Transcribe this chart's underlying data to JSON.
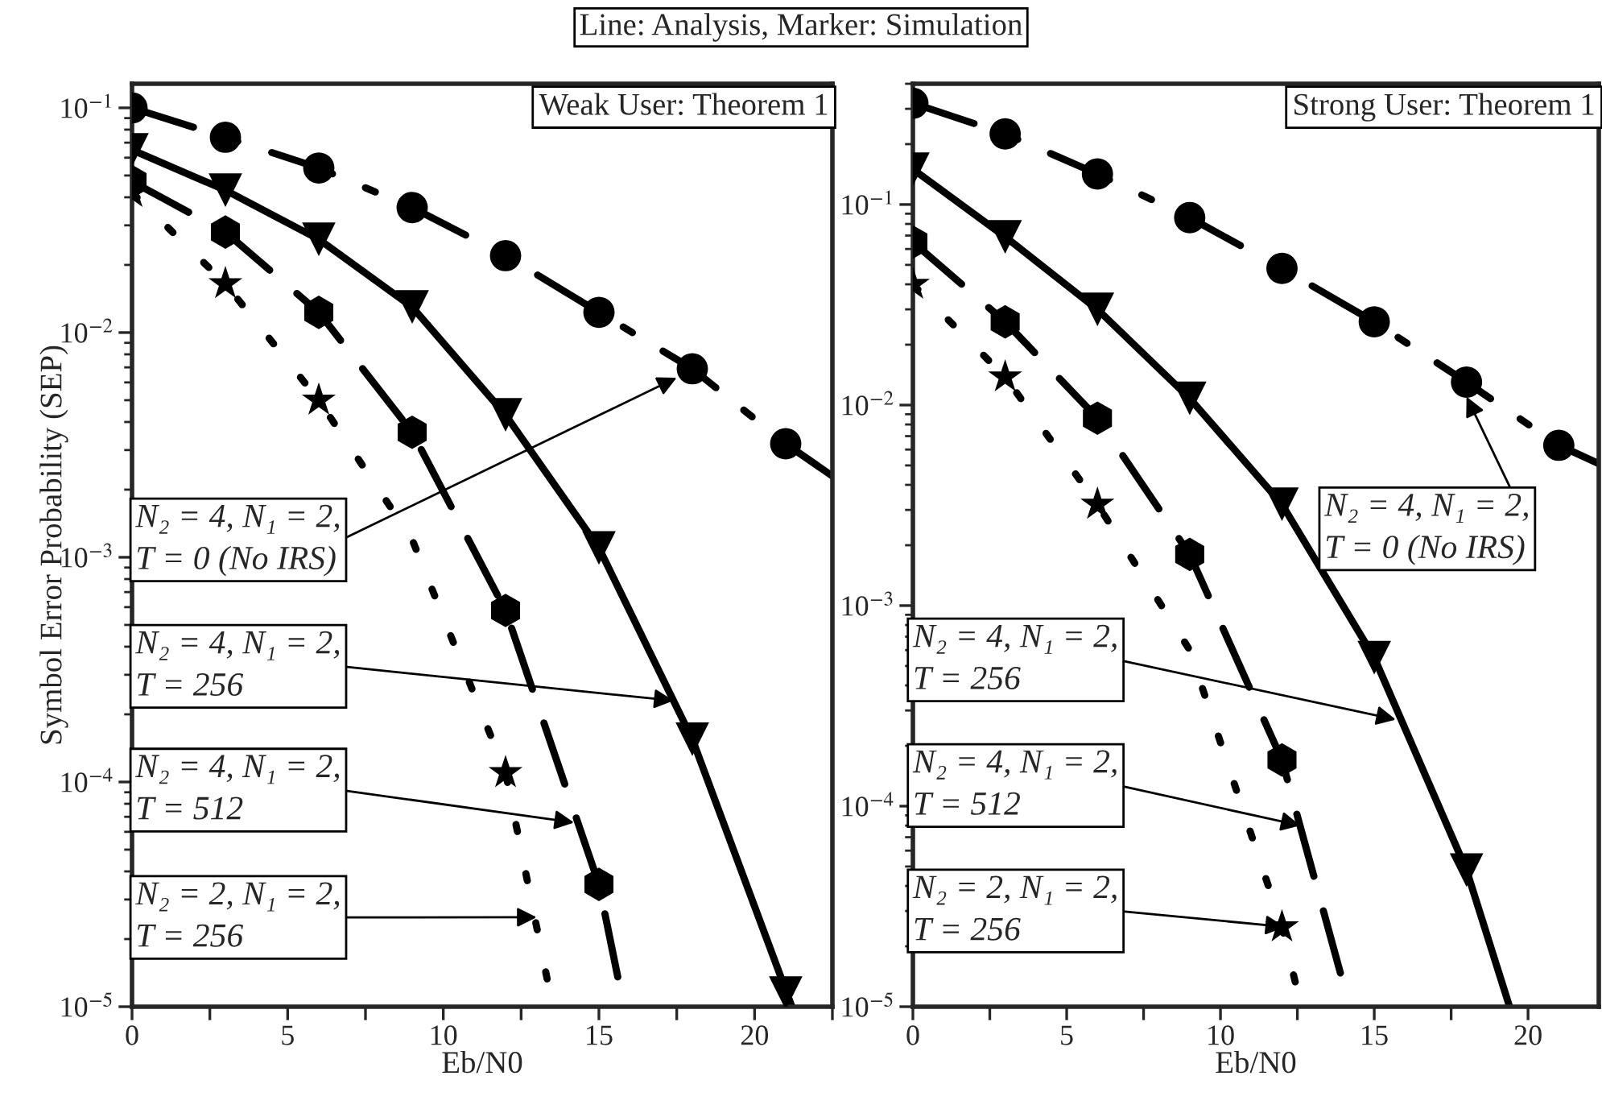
{
  "chart_data": [
    {
      "type": "line",
      "title": "Weak User: Theorem 1",
      "xlabel": "Eb/N0",
      "ylabel": "Symbol Error Probability (SEP)",
      "log": "y",
      "grid": false,
      "legend": false,
      "xlim": [
        0,
        22.5
      ],
      "ylim": [
        1e-05,
        0.128
      ],
      "xticks": [
        0,
        {
          "value": 2.5,
          "label": null
        },
        5,
        {
          "value": 7.5,
          "label": null
        },
        10,
        {
          "value": 12.5,
          "label": null
        },
        15,
        {
          "value": 17.5,
          "label": null
        },
        20,
        {
          "value": 22.5,
          "label": null
        }
      ],
      "yticks": [
        {
          "value": 0.1,
          "label": "10$^{−1}$"
        },
        {
          "value": 0.01,
          "label": "10$^{−2}$"
        },
        {
          "value": 0.001,
          "label": "10$^{−3}$"
        },
        {
          "value": 0.0001,
          "label": "10$^{−4}$"
        },
        {
          "value": 1e-05,
          "label": "10$^{−5}$"
        }
      ],
      "series": [
        {
          "type": "line",
          "color": "#000000",
          "line_style": "dashdot",
          "marker": "none",
          "x": [
            0,
            3,
            6,
            9,
            12,
            15,
            18,
            21,
            22.5
          ],
          "values": [
            0.1,
            0.074,
            0.054,
            0.036,
            0.022,
            0.0123,
            0.0069,
            0.0032,
            0.0023
          ]
        },
        {
          "type": "scatter",
          "color": "#000000",
          "marker": "circle",
          "x": [
            0,
            3,
            6,
            9,
            12,
            15,
            18,
            21
          ],
          "values": [
            0.1,
            0.074,
            0.054,
            0.036,
            0.022,
            0.0123,
            0.0069,
            0.0032
          ]
        },
        {
          "type": "line",
          "color": "#000000",
          "line_style": "solid",
          "marker": "none",
          "x": [
            0,
            3,
            6,
            9,
            12,
            15,
            18,
            21.2
          ],
          "values": [
            0.065,
            0.043,
            0.026,
            0.013,
            0.0043,
            0.0011,
            0.000155,
            1e-05
          ]
        },
        {
          "type": "scatter",
          "color": "#000000",
          "marker": "triangle",
          "x": [
            0,
            3,
            6,
            9,
            12,
            15,
            18,
            21
          ],
          "values": [
            0.065,
            0.043,
            0.026,
            0.013,
            0.0043,
            0.0011,
            0.000155,
            1.15e-05
          ]
        },
        {
          "type": "line",
          "color": "#000000",
          "line_style": "dashed",
          "marker": "none",
          "x": [
            0,
            3,
            6,
            9,
            12,
            15,
            15.8
          ],
          "values": [
            0.047,
            0.028,
            0.0123,
            0.0036,
            0.00058,
            3.5e-05,
            1e-05
          ]
        },
        {
          "type": "scatter",
          "color": "#000000",
          "x": [
            0,
            3,
            6,
            9,
            12,
            15
          ],
          "values": [
            0.047,
            0.028,
            0.0123,
            0.0036,
            0.00058,
            3.5e-05
          ]
        },
        {
          "type": "line",
          "color": "#000000",
          "line_style": "dotted",
          "marker": "none",
          "x": [
            0,
            3,
            6,
            9,
            12,
            13.4
          ],
          "values": [
            0.042,
            0.0165,
            0.005,
            0.0012,
            0.00011,
            1.2e-05
          ]
        },
        {
          "type": "scatter",
          "color": "#000000",
          "marker": "star",
          "x": [
            0,
            3,
            6,
            9,
            12
          ],
          "values": [
            0.042,
            0.0165,
            0.005,
            null,
            0.00011
          ]
        }
      ],
      "annotations": [
        "Line: Analysis, Marker: Simulation",
        {
          "text": "N₂ = 4, N₁ = 2,\nT = 0 (No IRS)",
          "x": 17.5,
          "y": 0.0063
        },
        {
          "text": "N₂ = 4, N₁ = 2,\nT = 256",
          "x": 17.4,
          "y": 0.00023
        },
        {
          "text": "N₂ = 4, N₁ = 2,\nT = 512",
          "x": 14.2,
          "y": 6.6e-05
        },
        {
          "text": "N₂ = 2, N₁ = 2,\nT = 256",
          "x": 13.0,
          "y": 2.5e-05
        }
      ]
    },
    {
      "type": "line",
      "title": "Strong User: Theorem 1",
      "xlabel": "Eb/N0",
      "log": "y",
      "grid": false,
      "legend": false,
      "xlim": [
        0,
        22.3
      ],
      "ylim": [
        1e-05,
        0.4
      ],
      "xticks": [
        0,
        {
          "value": 2.5,
          "label": null
        },
        5,
        {
          "value": 7.5,
          "label": null
        },
        10,
        {
          "value": 12.5,
          "label": null
        },
        15,
        {
          "value": 17.5,
          "label": null
        },
        20
      ],
      "yticks": [
        {
          "value": 0.1,
          "label": "10$^{−1}$"
        },
        {
          "value": 0.01,
          "label": "10$^{−2}$"
        },
        {
          "value": 0.001,
          "label": "10$^{−3}$"
        },
        {
          "value": 0.0001,
          "label": "10$^{−4}$"
        },
        {
          "value": 1e-05,
          "label": "10$^{−5}$"
        }
      ],
      "series": [
        {
          "type": "line",
          "color": "#000000",
          "line_style": "dashdot",
          "marker": "none",
          "x": [
            0,
            3,
            6,
            9,
            12,
            15,
            18,
            21,
            22.3
          ],
          "values": [
            0.32,
            0.225,
            0.142,
            0.086,
            0.048,
            0.026,
            0.013,
            0.0063,
            0.0051
          ]
        },
        {
          "type": "scatter",
          "color": "#000000",
          "marker": "circle",
          "x": [
            0,
            3,
            6,
            9,
            12,
            15,
            18,
            21
          ],
          "values": [
            0.32,
            0.225,
            0.142,
            0.086,
            0.048,
            0.026,
            0.013,
            0.0063
          ]
        },
        {
          "type": "line",
          "color": "#000000",
          "line_style": "solid",
          "marker": "none",
          "x": [
            0,
            3,
            6,
            9,
            12,
            15,
            18,
            19.4
          ],
          "values": [
            0.15,
            0.069,
            0.03,
            0.0108,
            0.0032,
            0.00055,
            4.8e-05,
            1e-05
          ]
        },
        {
          "type": "scatter",
          "color": "#000000",
          "marker": "triangle",
          "x": [
            0,
            3,
            6,
            9,
            12,
            15,
            18
          ],
          "values": [
            0.15,
            0.069,
            0.03,
            0.0108,
            0.0032,
            0.00055,
            4.8e-05
          ]
        },
        {
          "type": "line",
          "color": "#000000",
          "line_style": "dashed",
          "marker": "none",
          "x": [
            0,
            3,
            6,
            9,
            12,
            14.2
          ],
          "values": [
            0.065,
            0.026,
            0.0086,
            0.0018,
            0.00017,
            1e-05
          ]
        },
        {
          "type": "scatter",
          "color": "#000000",
          "x": [
            0,
            3,
            6,
            9,
            12
          ],
          "values": [
            0.065,
            0.026,
            0.0086,
            0.0018,
            0.00017
          ]
        },
        {
          "type": "line",
          "color": "#000000",
          "line_style": "dotted",
          "marker": "none",
          "x": [
            0,
            3,
            6,
            9,
            12,
            12.5
          ],
          "values": [
            0.04,
            0.0138,
            0.0032,
            0.0006,
            2.5e-05,
            1.2e-05
          ]
        },
        {
          "type": "scatter",
          "color": "#000000",
          "marker": "star",
          "x": [
            0,
            3,
            6,
            9,
            12
          ],
          "values": [
            0.04,
            0.0138,
            0.0032,
            null,
            2.5e-05
          ]
        }
      ],
      "annotations": [
        {
          "text": "N₂ = 4, N₁ = 2,\nT = 0 (No IRS)",
          "x": 18,
          "y": 0.011
        },
        {
          "text": "N₂ = 4, N₁ = 2,\nT = 256",
          "x": 15.7,
          "y": 0.00027
        },
        {
          "text": "N₂ = 4, N₁ = 2,\nT = 512",
          "x": 12.6,
          "y": 8e-05
        },
        {
          "text": "N₂ = 2, N₁ = 2,\nT = 256",
          "x": 12.1,
          "y": 2.5e-05
        }
      ]
    }
  ]
}
